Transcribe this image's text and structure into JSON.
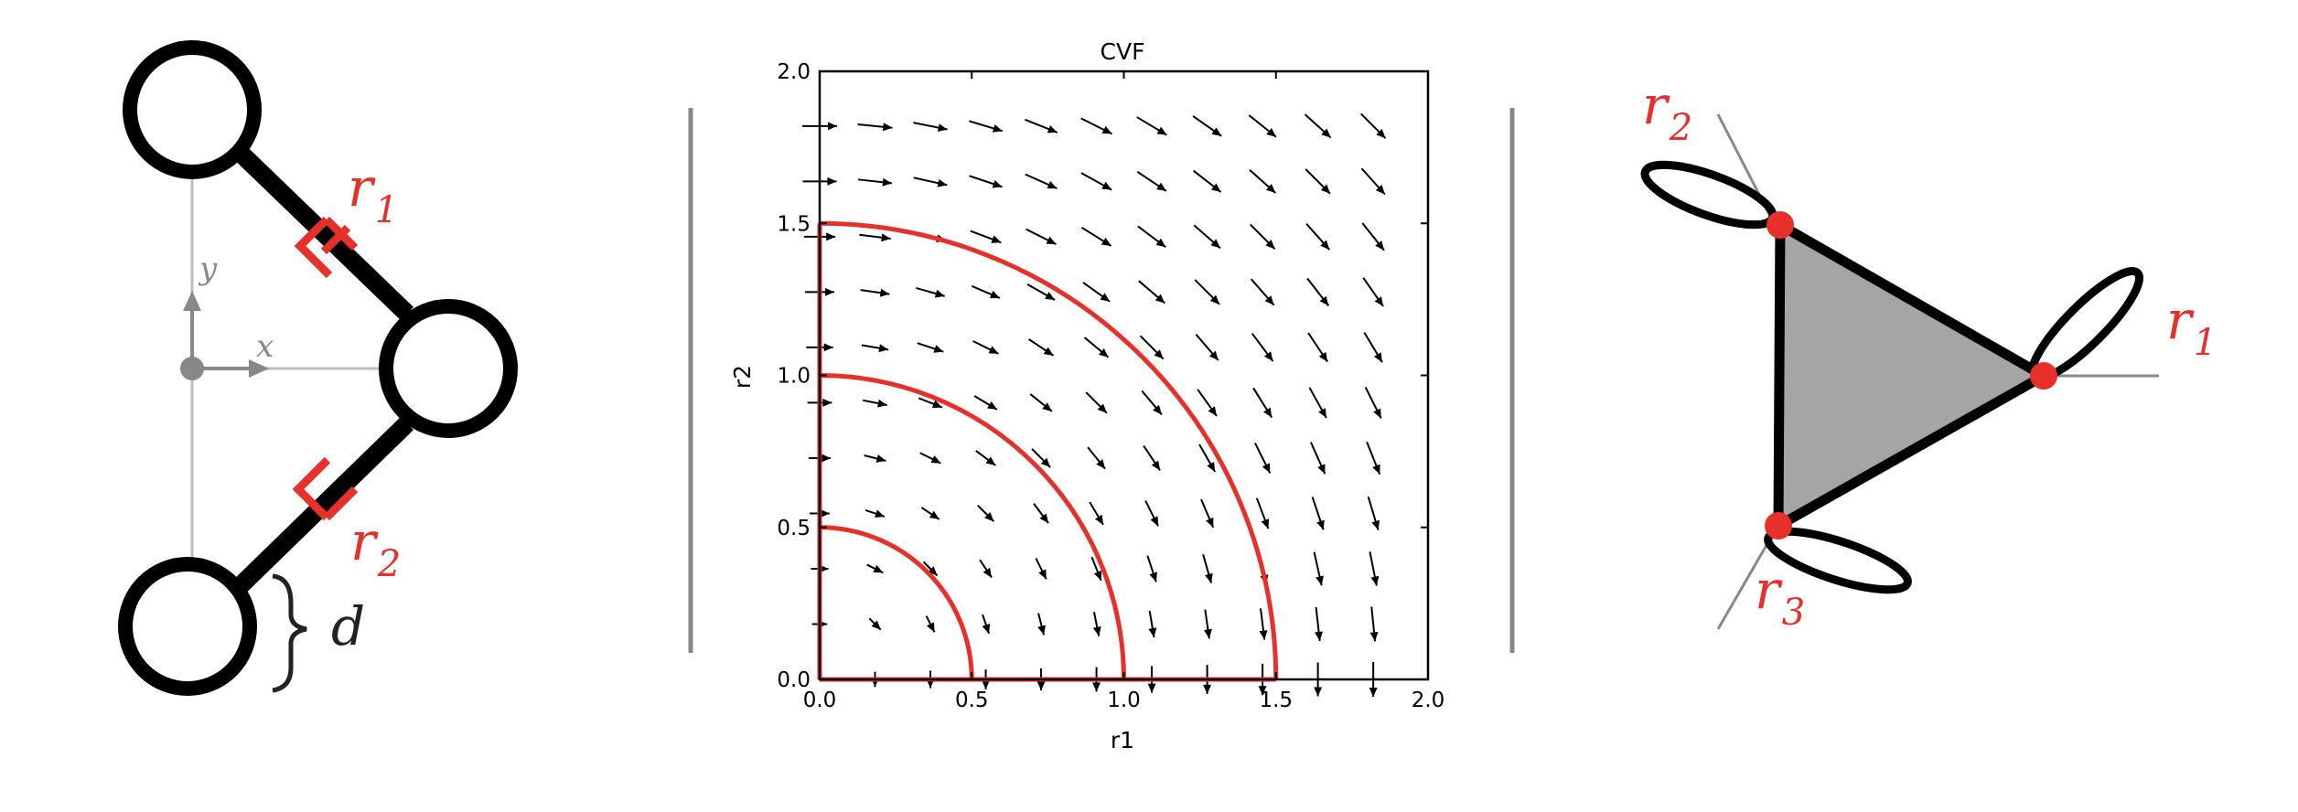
{
  "left_panel": {
    "labels": {
      "r1": {
        "main": "r",
        "sub": "1"
      },
      "r2": {
        "main": "r",
        "sub": "2"
      },
      "d": "d",
      "x": "x",
      "y": "y"
    },
    "colors": {
      "accent": "#e8302a",
      "ink": "#000000",
      "axis": "#888888"
    }
  },
  "middle_panel": {
    "chart_data": {
      "type": "quiver",
      "title": "CVF",
      "xlabel": "r1",
      "ylabel": "r2",
      "xlim": [
        0.0,
        2.0
      ],
      "ylim": [
        0.0,
        2.0
      ],
      "xticks": [
        "0.0",
        "0.5",
        "1.0",
        "1.5",
        "2.0"
      ],
      "yticks": [
        "0.0",
        "0.5",
        "1.0",
        "1.5",
        "2.0"
      ],
      "grid": false,
      "vector_field": {
        "grid_step": 0.182,
        "description_of_field": "rotational flow, direction approximately (r2, -r1)"
      },
      "contours": [
        {
          "radius": 0.5,
          "color": "#e8302a"
        },
        {
          "radius": 1.0,
          "color": "#e8302a"
        },
        {
          "radius": 1.5,
          "color": "#e8302a"
        }
      ]
    }
  },
  "right_panel": {
    "labels": {
      "r1": {
        "main": "r",
        "sub": "1"
      },
      "r2": {
        "main": "r",
        "sub": "2"
      },
      "r3": {
        "main": "r",
        "sub": "3"
      }
    },
    "colors": {
      "fill": "#a6a5a3",
      "node": "#e8302a",
      "line": "#888888"
    }
  }
}
